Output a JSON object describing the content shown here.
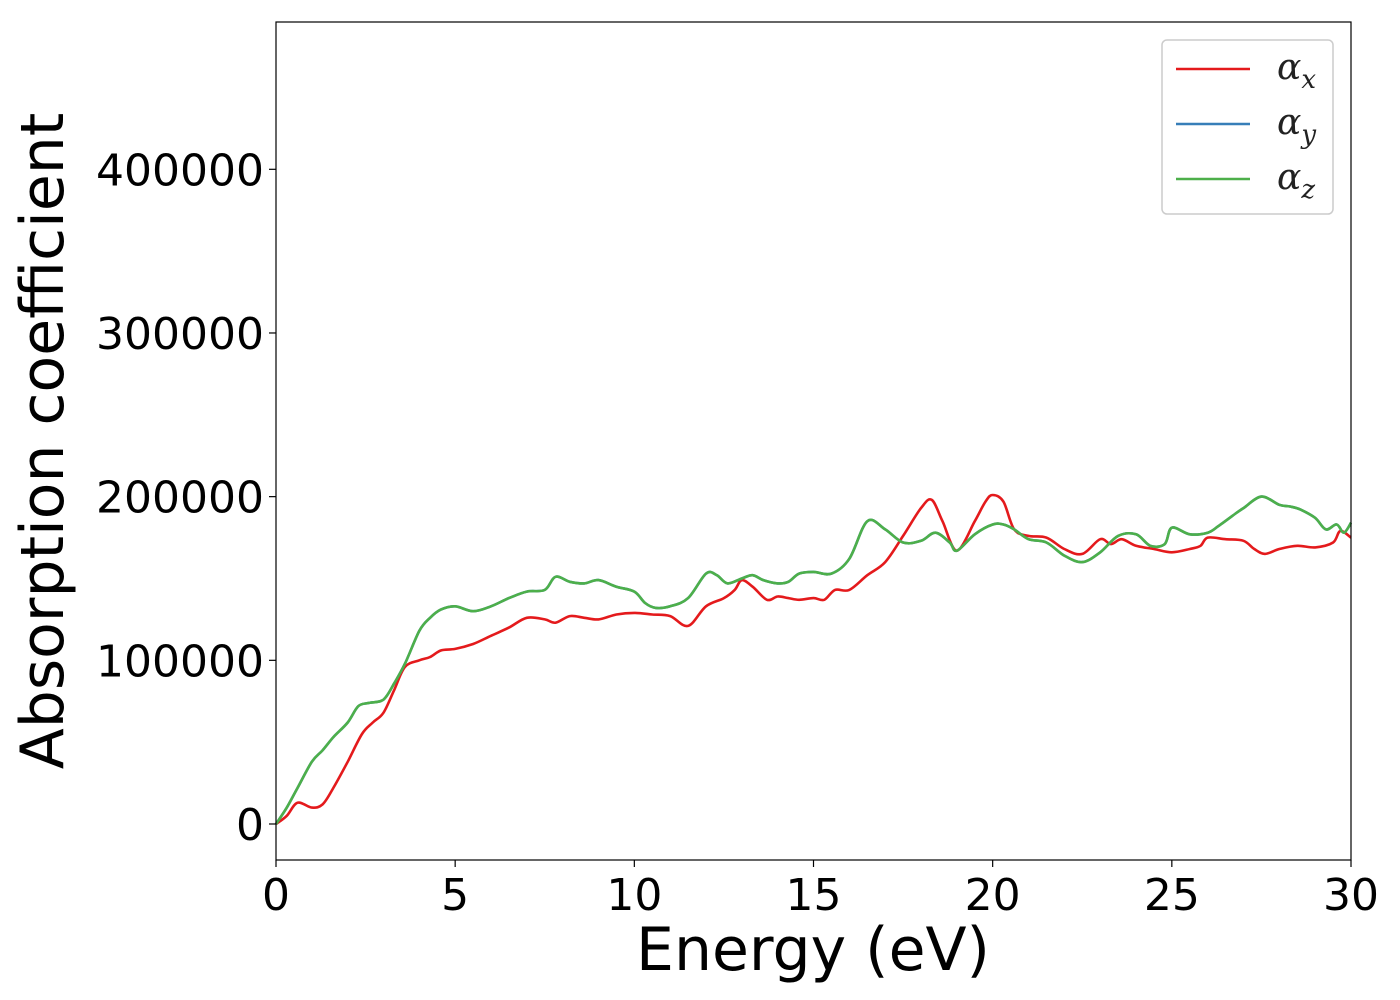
{
  "chart_data": {
    "type": "line",
    "title": "",
    "xlabel": "Energy (eV)",
    "ylabel": "Absorption coefficient",
    "xlim": [
      0,
      30
    ],
    "ylim": [
      -22000,
      490000
    ],
    "xticks": [
      0,
      5,
      10,
      15,
      20,
      25,
      30
    ],
    "yticks": [
      0,
      100000,
      200000,
      300000,
      400000
    ],
    "xtick_labels": [
      "0",
      "5",
      "10",
      "15",
      "20",
      "25",
      "30"
    ],
    "ytick_labels": [
      "0",
      "100000",
      "200000",
      "300000",
      "400000"
    ],
    "grid": false,
    "legend_position": "top-right",
    "series": [
      {
        "name": "α",
        "subscript": "x",
        "color": "#e41a1c",
        "x": [
          0,
          0.3,
          0.6,
          1.0,
          1.3,
          1.6,
          2.0,
          2.4,
          2.7,
          3.0,
          3.3,
          3.6,
          4.0,
          4.3,
          4.6,
          5.0,
          5.5,
          6.0,
          6.5,
          7.0,
          7.5,
          7.8,
          8.2,
          8.6,
          9.0,
          9.5,
          10.0,
          10.5,
          11.0,
          11.5,
          12.0,
          12.5,
          12.8,
          13.0,
          13.3,
          13.7,
          14.0,
          14.3,
          14.6,
          15.0,
          15.3,
          15.6,
          16.0,
          16.5,
          17.0,
          17.5,
          18.0,
          18.3,
          18.6,
          19.0,
          19.5,
          19.8,
          20.0,
          20.3,
          20.6,
          21.0,
          21.5,
          22.0,
          22.5,
          23.0,
          23.3,
          23.6,
          24.0,
          24.5,
          25.0,
          25.5,
          25.8,
          26.0,
          26.5,
          27.0,
          27.3,
          27.6,
          28.0,
          28.5,
          29.0,
          29.5,
          29.7,
          30.0
        ],
        "y": [
          0,
          5000,
          13000,
          10000,
          12000,
          22000,
          38000,
          55000,
          62000,
          68000,
          82000,
          96000,
          100000,
          102000,
          106000,
          107000,
          110000,
          115000,
          120000,
          126000,
          125000,
          123000,
          127000,
          126000,
          125000,
          128000,
          129000,
          128000,
          127000,
          121000,
          133000,
          138000,
          143000,
          149000,
          145000,
          137000,
          139000,
          138000,
          137000,
          138000,
          137000,
          143000,
          143000,
          152000,
          160000,
          176000,
          193000,
          198000,
          185000,
          167000,
          185000,
          197000,
          201000,
          197000,
          180000,
          176000,
          175000,
          168000,
          165000,
          174000,
          171000,
          174000,
          170000,
          168000,
          166000,
          168000,
          170000,
          175000,
          174000,
          173000,
          168000,
          165000,
          168000,
          170000,
          169000,
          172000,
          179000,
          175000
        ]
      },
      {
        "name": "α",
        "subscript": "y",
        "color": "#377eb8",
        "x": [
          0,
          0.3,
          0.6,
          1.0,
          1.3,
          1.6,
          2.0,
          2.3,
          2.6,
          3.0,
          3.3,
          3.6,
          4.0,
          4.3,
          4.6,
          5.0,
          5.5,
          6.0,
          6.5,
          7.0,
          7.5,
          7.8,
          8.2,
          8.6,
          9.0,
          9.5,
          10.0,
          10.3,
          10.6,
          11.0,
          11.5,
          12.0,
          12.3,
          12.6,
          13.0,
          13.3,
          13.6,
          14.0,
          14.3,
          14.6,
          15.0,
          15.5,
          16.0,
          16.5,
          17.0,
          17.5,
          18.0,
          18.4,
          18.8,
          19.0,
          19.5,
          20.0,
          20.3,
          20.6,
          21.0,
          21.5,
          22.0,
          22.5,
          23.0,
          23.5,
          24.0,
          24.4,
          24.8,
          25.0,
          25.5,
          26.0,
          26.3,
          26.8,
          27.0,
          27.5,
          28.0,
          28.3,
          28.6,
          29.0,
          29.3,
          29.6,
          29.8,
          30.0
        ],
        "y": [
          0,
          10000,
          22000,
          38000,
          45000,
          53000,
          62000,
          72000,
          74000,
          76000,
          86000,
          98000,
          118000,
          126000,
          131000,
          133000,
          130000,
          133000,
          138000,
          142000,
          143000,
          151000,
          148000,
          147000,
          149000,
          145000,
          142000,
          135000,
          132000,
          133000,
          138000,
          153000,
          152000,
          147000,
          150000,
          152000,
          149000,
          147000,
          148000,
          153000,
          154000,
          153000,
          162000,
          185000,
          180000,
          172000,
          173000,
          178000,
          172000,
          167000,
          177000,
          183000,
          183000,
          180000,
          174000,
          172000,
          164000,
          160000,
          166000,
          176000,
          177000,
          170000,
          171000,
          181000,
          177000,
          178000,
          182000,
          190000,
          193000,
          200000,
          195000,
          194000,
          192000,
          187000,
          180000,
          183000,
          178000,
          184000
        ]
      },
      {
        "name": "α",
        "subscript": "z",
        "color": "#4daf4a",
        "x": [
          0,
          0.3,
          0.6,
          1.0,
          1.3,
          1.6,
          2.0,
          2.3,
          2.6,
          3.0,
          3.3,
          3.6,
          4.0,
          4.3,
          4.6,
          5.0,
          5.5,
          6.0,
          6.5,
          7.0,
          7.5,
          7.8,
          8.2,
          8.6,
          9.0,
          9.5,
          10.0,
          10.3,
          10.6,
          11.0,
          11.5,
          12.0,
          12.3,
          12.6,
          13.0,
          13.3,
          13.6,
          14.0,
          14.3,
          14.6,
          15.0,
          15.5,
          16.0,
          16.5,
          17.0,
          17.5,
          18.0,
          18.4,
          18.8,
          19.0,
          19.5,
          20.0,
          20.3,
          20.6,
          21.0,
          21.5,
          22.0,
          22.5,
          23.0,
          23.5,
          24.0,
          24.4,
          24.8,
          25.0,
          25.5,
          26.0,
          26.3,
          26.8,
          27.0,
          27.5,
          28.0,
          28.3,
          28.6,
          29.0,
          29.3,
          29.6,
          29.8,
          30.0
        ],
        "y": [
          0,
          10000,
          22000,
          38000,
          45000,
          53000,
          62000,
          72000,
          74000,
          76000,
          86000,
          98000,
          118000,
          126000,
          131000,
          133000,
          130000,
          133000,
          138000,
          142000,
          143000,
          151000,
          148000,
          147000,
          149000,
          145000,
          142000,
          135000,
          132000,
          133000,
          138000,
          153000,
          152000,
          147000,
          150000,
          152000,
          149000,
          147000,
          148000,
          153000,
          154000,
          153000,
          162000,
          185000,
          180000,
          172000,
          173000,
          178000,
          172000,
          167000,
          177000,
          183000,
          183000,
          180000,
          174000,
          172000,
          164000,
          160000,
          166000,
          176000,
          177000,
          170000,
          171000,
          181000,
          177000,
          178000,
          182000,
          190000,
          193000,
          200000,
          195000,
          194000,
          192000,
          187000,
          180000,
          183000,
          178000,
          184000
        ]
      }
    ]
  }
}
